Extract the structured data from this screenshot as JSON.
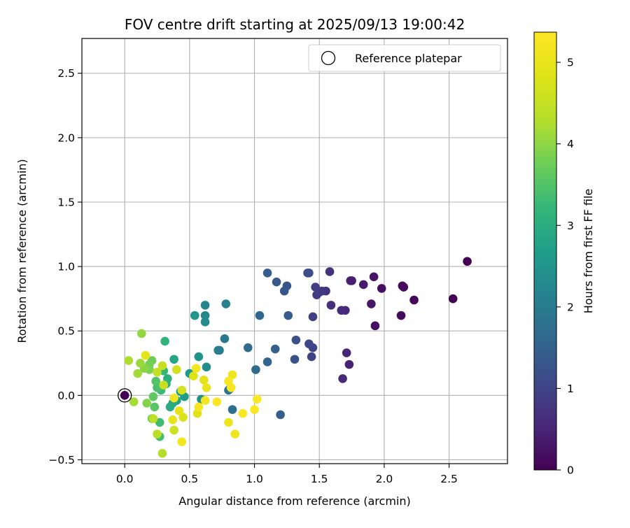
{
  "chart_data": {
    "type": "scatter",
    "title": "FOV centre drift starting at 2025/09/13 19:00:42",
    "xlabel": "Angular distance from reference (arcmin)",
    "ylabel": "Rotation from reference (arcmin)",
    "xlim": [
      -0.33,
      2.95
    ],
    "ylim": [
      -0.53,
      2.77
    ],
    "xticks": [
      0.0,
      0.5,
      1.0,
      1.5,
      2.0,
      2.5
    ],
    "xtick_labels": [
      "0.0",
      "0.5",
      "1.0",
      "1.5",
      "2.0",
      "2.5"
    ],
    "yticks": [
      -0.5,
      0.0,
      0.5,
      1.0,
      1.5,
      2.0,
      2.5
    ],
    "ytick_labels": [
      "−0.5",
      "0.0",
      "0.5",
      "1.0",
      "1.5",
      "2.0",
      "2.5"
    ],
    "grid": true,
    "legend": {
      "position": "top-right",
      "entries": [
        "Reference platepar"
      ]
    },
    "reference_point": {
      "x": 0.0,
      "y": 0.0
    },
    "colorbar": {
      "label": "Hours from first FF file",
      "colormap": "viridis",
      "range": [
        0,
        5.37
      ],
      "ticks": [
        0,
        1,
        2,
        3,
        4,
        5
      ],
      "tick_labels": [
        "0",
        "1",
        "2",
        "3",
        "4",
        "5"
      ]
    },
    "points": [
      [
        2.64,
        1.04,
        0.02
      ],
      [
        2.53,
        0.75,
        0.05
      ],
      [
        2.23,
        0.74,
        0.08
      ],
      [
        2.15,
        0.84,
        0.1
      ],
      [
        2.14,
        0.85,
        0.12
      ],
      [
        2.13,
        0.62,
        0.15
      ],
      [
        1.98,
        0.83,
        0.18
      ],
      [
        1.93,
        0.54,
        0.21
      ],
      [
        1.92,
        0.92,
        0.25
      ],
      [
        1.9,
        0.71,
        0.29
      ],
      [
        1.84,
        0.86,
        0.34
      ],
      [
        1.75,
        0.89,
        0.38
      ],
      [
        1.74,
        0.89,
        0.42
      ],
      [
        1.73,
        0.24,
        0.46
      ],
      [
        1.71,
        0.33,
        0.5
      ],
      [
        1.7,
        0.66,
        0.54
      ],
      [
        1.68,
        0.13,
        0.58
      ],
      [
        1.67,
        0.66,
        0.62
      ],
      [
        1.59,
        0.7,
        0.66
      ],
      [
        1.58,
        0.96,
        0.7
      ],
      [
        1.55,
        0.81,
        0.74
      ],
      [
        1.52,
        0.81,
        0.78
      ],
      [
        1.5,
        0.8,
        0.82
      ],
      [
        1.48,
        0.78,
        0.86
      ],
      [
        1.47,
        0.84,
        0.9
      ],
      [
        1.45,
        0.61,
        0.94
      ],
      [
        1.44,
        0.3,
        0.98
      ],
      [
        1.45,
        0.37,
        1.02
      ],
      [
        1.42,
        0.4,
        1.06
      ],
      [
        1.42,
        0.95,
        1.1
      ],
      [
        1.41,
        0.95,
        1.14
      ],
      [
        1.32,
        0.43,
        1.18
      ],
      [
        1.31,
        0.28,
        1.22
      ],
      [
        1.25,
        0.85,
        1.26
      ],
      [
        1.23,
        0.81,
        1.3
      ],
      [
        1.17,
        0.88,
        1.34
      ],
      [
        1.26,
        0.62,
        1.38
      ],
      [
        1.1,
        0.95,
        1.42
      ],
      [
        1.2,
        -0.15,
        1.46
      ],
      [
        1.16,
        0.36,
        1.5
      ],
      [
        1.1,
        0.26,
        1.55
      ],
      [
        1.04,
        0.62,
        1.6
      ],
      [
        1.01,
        0.2,
        1.65
      ],
      [
        0.95,
        0.37,
        1.7
      ],
      [
        0.83,
        -0.11,
        1.76
      ],
      [
        0.81,
        0.05,
        1.82
      ],
      [
        0.8,
        0.04,
        1.88
      ],
      [
        0.77,
        0.44,
        1.94
      ],
      [
        0.73,
        0.35,
        2.0
      ],
      [
        0.72,
        0.35,
        2.06
      ],
      [
        0.78,
        0.71,
        2.12
      ],
      [
        0.62,
        0.7,
        2.18
      ],
      [
        0.62,
        0.62,
        2.24
      ],
      [
        0.62,
        0.57,
        2.3
      ],
      [
        0.63,
        0.22,
        2.36
      ],
      [
        0.59,
        -0.03,
        2.42
      ],
      [
        0.57,
        0.3,
        2.48
      ],
      [
        0.54,
        0.62,
        2.54
      ],
      [
        0.5,
        0.17,
        2.6
      ],
      [
        0.46,
        -0.01,
        2.66
      ],
      [
        0.43,
        0.03,
        2.72
      ],
      [
        0.4,
        -0.04,
        2.78
      ],
      [
        0.38,
        0.28,
        2.84
      ],
      [
        0.37,
        -0.06,
        2.9
      ],
      [
        0.35,
        -0.09,
        2.96
      ],
      [
        0.33,
        0.13,
        3.02
      ],
      [
        0.32,
        0.09,
        3.08
      ],
      [
        0.31,
        0.42,
        3.14
      ],
      [
        0.3,
        0.19,
        3.2
      ],
      [
        0.28,
        0.04,
        3.26
      ],
      [
        0.27,
        -0.21,
        3.32
      ],
      [
        0.27,
        -0.32,
        3.38
      ],
      [
        0.25,
        0.06,
        3.44
      ],
      [
        0.24,
        0.11,
        3.5
      ],
      [
        0.23,
        -0.09,
        3.56
      ],
      [
        0.22,
        -0.01,
        3.62
      ],
      [
        0.21,
        -0.18,
        3.68
      ],
      [
        0.21,
        0.27,
        3.74
      ],
      [
        0.19,
        0.24,
        3.8
      ],
      [
        0.19,
        0.2,
        3.86
      ],
      [
        0.17,
        -0.06,
        3.92
      ],
      [
        0.15,
        0.21,
        3.98
      ],
      [
        0.13,
        0.48,
        4.04
      ],
      [
        0.12,
        0.25,
        4.1
      ],
      [
        0.1,
        0.17,
        4.15
      ],
      [
        0.07,
        -0.05,
        4.2
      ],
      [
        0.03,
        0.27,
        4.25
      ],
      [
        0.29,
        -0.45,
        4.3
      ],
      [
        0.25,
        -0.3,
        4.35
      ],
      [
        0.22,
        -0.18,
        4.4
      ],
      [
        0.25,
        0.18,
        4.45
      ],
      [
        0.29,
        0.23,
        4.5
      ],
      [
        0.3,
        0.08,
        4.55
      ],
      [
        0.38,
        -0.27,
        4.6
      ],
      [
        0.4,
        0.2,
        4.65
      ],
      [
        0.44,
        0.04,
        4.7
      ],
      [
        0.45,
        -0.17,
        4.75
      ],
      [
        0.53,
        0.15,
        4.8
      ],
      [
        0.56,
        -0.14,
        4.85
      ],
      [
        0.61,
        0.12,
        4.9
      ],
      [
        0.16,
        0.31,
        4.92
      ],
      [
        0.37,
        -0.19,
        4.95
      ],
      [
        0.42,
        -0.12,
        5.0
      ],
      [
        0.63,
        0.06,
        5.02
      ],
      [
        0.8,
        -0.21,
        5.05
      ],
      [
        0.83,
        0.16,
        5.1
      ],
      [
        0.85,
        -0.3,
        5.12
      ],
      [
        0.38,
        -0.02,
        5.15
      ],
      [
        0.44,
        -0.36,
        5.18
      ],
      [
        0.55,
        0.21,
        5.2
      ],
      [
        0.57,
        -0.09,
        5.22
      ],
      [
        0.62,
        -0.04,
        5.25
      ],
      [
        0.8,
        0.11,
        5.27
      ],
      [
        0.82,
        0.06,
        5.3
      ],
      [
        0.91,
        -0.14,
        5.32
      ],
      [
        1.0,
        -0.11,
        5.34
      ],
      [
        1.02,
        -0.03,
        5.36
      ],
      [
        0.71,
        -0.05,
        5.37
      ],
      [
        0.0,
        0.0,
        0.0
      ]
    ]
  }
}
